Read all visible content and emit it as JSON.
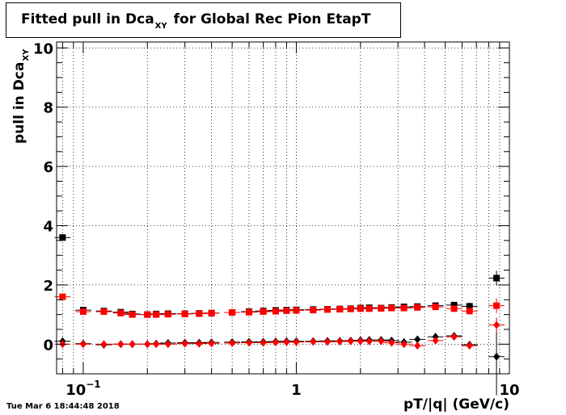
{
  "title": {
    "main": "Fitted pull in Dca",
    "sub": "XY",
    "rest": "for Global Rec Pion EtapT"
  },
  "timestamp": "Tue Mar  6 18:44:48 2018",
  "chart_data": {
    "type": "scatter",
    "title": "Fitted pull in DcaXY for Global Rec Pion EtapT",
    "xlabel": "pT/|q| (GeV/c)",
    "ylabel": "pull in DcaXY",
    "xscale": "log",
    "xlim": [
      0.075,
      10
    ],
    "ylim": [
      -1,
      10.2
    ],
    "grid": true,
    "x_tick_labels": [
      "10^-1",
      "1",
      "10"
    ],
    "y_tick_labels": [
      "0",
      "2",
      "4",
      "6",
      "8",
      "10"
    ],
    "colors": {
      "black": "#000000",
      "red": "#ff0000"
    },
    "series": [
      {
        "marker": "square",
        "color": "black",
        "x": [
          0.08,
          0.1,
          0.125,
          0.15,
          0.17,
          0.2,
          0.22,
          0.25,
          0.3,
          0.35,
          0.4,
          0.5,
          0.6,
          0.7,
          0.8,
          0.9,
          1.0,
          1.2,
          1.4,
          1.6,
          1.8,
          2.0,
          2.2,
          2.5,
          2.8,
          3.2,
          3.7,
          4.5,
          5.5,
          6.5,
          8.7
        ],
        "y": [
          3.6,
          1.15,
          1.12,
          1.08,
          1.02,
          1.0,
          1.02,
          1.03,
          1.03,
          1.04,
          1.05,
          1.07,
          1.1,
          1.12,
          1.14,
          1.15,
          1.16,
          1.17,
          1.18,
          1.19,
          1.2,
          1.22,
          1.23,
          1.22,
          1.24,
          1.26,
          1.27,
          1.3,
          1.32,
          1.28,
          2.23
        ]
      },
      {
        "marker": "square",
        "color": "red",
        "x": [
          0.08,
          0.1,
          0.125,
          0.15,
          0.17,
          0.2,
          0.22,
          0.25,
          0.3,
          0.35,
          0.4,
          0.5,
          0.6,
          0.7,
          0.8,
          0.9,
          1.0,
          1.2,
          1.4,
          1.6,
          1.8,
          2.0,
          2.2,
          2.5,
          2.8,
          3.2,
          3.7,
          4.5,
          5.5,
          6.5,
          8.7
        ],
        "y": [
          1.6,
          1.1,
          1.1,
          1.05,
          1.0,
          1.0,
          1.0,
          1.01,
          1.02,
          1.03,
          1.05,
          1.07,
          1.08,
          1.1,
          1.11,
          1.13,
          1.14,
          1.15,
          1.17,
          1.18,
          1.19,
          1.2,
          1.2,
          1.21,
          1.22,
          1.22,
          1.24,
          1.26,
          1.2,
          1.12,
          1.3
        ]
      },
      {
        "marker": "diamond",
        "color": "black",
        "x": [
          0.08,
          0.1,
          0.125,
          0.15,
          0.17,
          0.2,
          0.22,
          0.25,
          0.3,
          0.35,
          0.4,
          0.5,
          0.6,
          0.7,
          0.8,
          0.9,
          1.0,
          1.2,
          1.4,
          1.6,
          1.8,
          2.0,
          2.2,
          2.5,
          2.8,
          3.2,
          3.7,
          4.5,
          5.5,
          6.5,
          8.7
        ],
        "y": [
          0.1,
          0.02,
          -0.02,
          0.0,
          0.0,
          0.0,
          0.02,
          0.04,
          0.05,
          0.05,
          0.06,
          0.07,
          0.08,
          0.08,
          0.09,
          0.1,
          0.1,
          0.1,
          0.11,
          0.11,
          0.12,
          0.13,
          0.14,
          0.14,
          0.12,
          0.07,
          0.16,
          0.25,
          0.28,
          -0.02,
          -0.42
        ]
      },
      {
        "marker": "diamond",
        "color": "red",
        "x": [
          0.08,
          0.1,
          0.125,
          0.15,
          0.17,
          0.2,
          0.22,
          0.25,
          0.3,
          0.35,
          0.4,
          0.5,
          0.6,
          0.7,
          0.8,
          0.9,
          1.0,
          1.2,
          1.4,
          1.6,
          1.8,
          2.0,
          2.2,
          2.5,
          2.8,
          3.2,
          3.7,
          4.5,
          5.5,
          6.5,
          8.7
        ],
        "y": [
          0.0,
          0.0,
          0.0,
          0.0,
          0.0,
          0.0,
          0.0,
          0.0,
          0.02,
          0.02,
          0.03,
          0.04,
          0.05,
          0.05,
          0.06,
          0.07,
          0.07,
          0.08,
          0.08,
          0.09,
          0.1,
          0.1,
          0.1,
          0.1,
          0.05,
          0.0,
          -0.05,
          0.12,
          0.25,
          -0.05,
          0.65
        ]
      }
    ]
  }
}
